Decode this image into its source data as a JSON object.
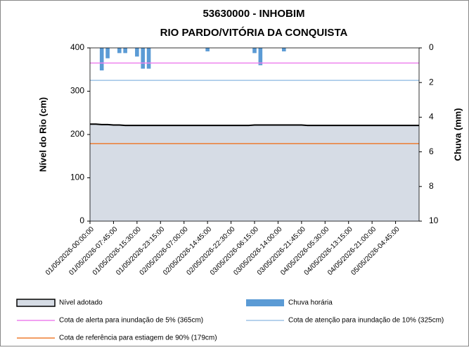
{
  "chart_data": {
    "type": "area",
    "title": [
      "53630000 - INHOBIM",
      "RIO PARDO/VITÓRIA DA CONQUISTA"
    ],
    "ylabel": "Nível do Rio (cm)",
    "y2label": "Chuva (mm)",
    "categories": [
      "01/05/2026-00:00:00",
      null,
      null,
      null,
      "01/05/2026-07:45:00",
      null,
      null,
      null,
      "01/05/2026-15:30:00",
      null,
      null,
      null,
      "01/05/2026-23:15:00",
      null,
      null,
      null,
      "02/05/2026-07:00:00",
      null,
      null,
      null,
      "02/05/2026-14:45:00",
      null,
      null,
      null,
      "02/05/2026-22:30:00",
      null,
      null,
      null,
      "03/05/2026-06:15:00",
      null,
      null,
      null,
      "03/05/2026-14:00:00",
      null,
      null,
      null,
      "03/05/2026-21:45:00",
      null,
      null,
      null,
      "04/05/2026-05:30:00",
      null,
      null,
      null,
      "04/05/2026-13:15:00",
      null,
      null,
      null,
      "04/05/2026-21:00:00",
      null,
      null,
      null,
      "05/05/2026-04:45:00",
      null,
      null,
      null,
      null
    ],
    "series": [
      {
        "name": "Nível adotado",
        "color": "#d6dce5",
        "line_color": "#000000",
        "values": [
          224,
          224,
          223,
          223,
          222,
          222,
          221,
          221,
          221,
          221,
          221,
          221,
          221,
          221,
          221,
          221,
          221,
          221,
          221,
          221,
          221,
          221,
          221,
          221,
          221,
          221,
          221,
          221,
          222,
          222,
          222,
          222,
          222,
          222,
          222,
          222,
          222,
          221,
          221,
          221,
          221,
          221,
          221,
          221,
          221,
          221,
          221,
          221,
          221,
          221,
          221,
          221,
          221,
          221,
          221,
          221,
          221
        ]
      },
      {
        "name": "Chuva horária",
        "color": "#5b9bd5",
        "axis": "y2",
        "kind": "bar",
        "values": [
          0,
          0,
          1.3,
          0.6,
          0,
          0.3,
          0.3,
          0,
          0.5,
          1.2,
          1.2,
          0,
          0,
          0,
          0,
          0,
          0,
          0,
          0,
          0,
          0.2,
          0,
          0,
          0,
          0,
          0,
          0,
          0,
          0.3,
          1.0,
          0,
          0,
          0,
          0.2,
          0,
          0,
          0,
          0,
          0,
          0,
          0,
          0,
          0,
          0,
          0,
          0,
          0,
          0,
          0,
          0,
          0,
          0,
          0,
          0,
          0,
          0,
          0
        ]
      }
    ],
    "reference_lines": [
      {
        "name": "Cota de alerta para inundação de 5% (365cm)",
        "value": 365,
        "color": "#ee82ee"
      },
      {
        "name": "Cota de atenção para inundação de 10% (325cm)",
        "value": 325,
        "color": "#9dc3e6"
      },
      {
        "name": "Cota de referência para estiagem de 90% (179cm)",
        "value": 179,
        "color": "#ed7d31"
      }
    ],
    "ylim": [
      0,
      400
    ],
    "yticks": [
      0,
      100,
      200,
      300,
      400
    ],
    "y2lim": [
      0,
      10
    ],
    "y2ticks": [
      0,
      2,
      4,
      6,
      8,
      10
    ],
    "y2_inverted": true,
    "grid": false
  }
}
